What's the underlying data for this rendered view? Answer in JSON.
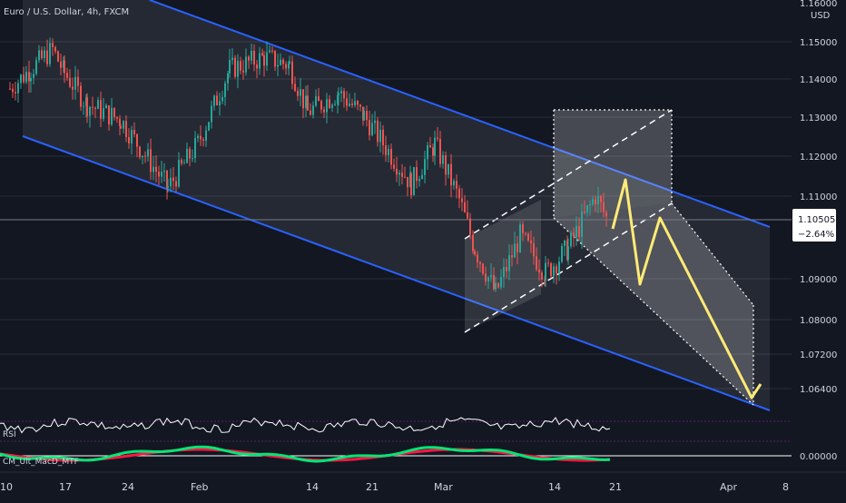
{
  "header": {
    "symbol": "Euro / U.S. Dollar, 4h, FXCM",
    "currency": "USD",
    "top_cut_label": "1.16000"
  },
  "price_axis": {
    "ticks": [
      "1.15000",
      "1.14000",
      "1.13000",
      "1.12000",
      "1.11000",
      "1.09000",
      "1.08000",
      "1.07200",
      "1.06400"
    ],
    "current_price": "1.10505",
    "change": "−2.64%"
  },
  "time_axis": {
    "ticks": [
      "10",
      "17",
      "24",
      "Feb",
      "14",
      "21",
      "Mar",
      "14",
      "21",
      "Apr",
      "8"
    ]
  },
  "indicators": {
    "rsi_label": "RSI",
    "macd_label": "CM_Ult_MacD_MTF",
    "macd_zero": "0.00000"
  },
  "colors": {
    "background": "#131722",
    "up": "#26a69a",
    "down": "#ef5350",
    "channel": "#2962ff",
    "projection": "#ffeb75",
    "price_label": "#ffffff"
  },
  "chart_data": {
    "type": "candlestick",
    "title": "Euro / U.S. Dollar, 4h, FXCM",
    "ylabel": "USD",
    "y_scale": "log",
    "ylim": [
      1.058,
      1.163
    ],
    "x_ticks": [
      "10",
      "17",
      "24",
      "Feb",
      "14",
      "21",
      "Mar",
      "14",
      "21",
      "Apr",
      "8"
    ],
    "y_ticks": [
      1.16,
      1.15,
      1.14,
      1.13,
      1.12,
      1.11,
      1.09,
      1.08,
      1.072,
      1.064
    ],
    "last_price": 1.10505,
    "last_change_pct": -2.64,
    "price_path": [
      {
        "x": "Jan 10",
        "price": 1.138
      },
      {
        "x": "Jan 12",
        "price": 1.143
      },
      {
        "x": "Jan 14",
        "price": 1.148
      },
      {
        "x": "Jan 17",
        "price": 1.142
      },
      {
        "x": "Jan 20",
        "price": 1.134
      },
      {
        "x": "Jan 24",
        "price": 1.13
      },
      {
        "x": "Jan 28",
        "price": 1.113
      },
      {
        "x": "Feb 1",
        "price": 1.124
      },
      {
        "x": "Feb 4",
        "price": 1.143
      },
      {
        "x": "Feb 7",
        "price": 1.146
      },
      {
        "x": "Feb 10",
        "price": 1.144
      },
      {
        "x": "Feb 14",
        "price": 1.132
      },
      {
        "x": "Feb 17",
        "price": 1.137
      },
      {
        "x": "Feb 21",
        "price": 1.131
      },
      {
        "x": "Feb 24",
        "price": 1.114
      },
      {
        "x": "Feb 27",
        "price": 1.124
      },
      {
        "x": "Mar 2",
        "price": 1.11
      },
      {
        "x": "Mar 4",
        "price": 1.098
      },
      {
        "x": "Mar 7",
        "price": 1.087
      },
      {
        "x": "Mar 10",
        "price": 1.101
      },
      {
        "x": "Mar 12",
        "price": 1.092
      },
      {
        "x": "Mar 15",
        "price": 1.098
      },
      {
        "x": "Mar 17",
        "price": 1.111
      },
      {
        "x": "Mar 18",
        "price": 1.105
      }
    ],
    "projection_path": [
      1.1045,
      1.1145,
      1.0895,
      1.1055,
      1.0625
    ],
    "annotations": [
      "descending channel",
      "rising channel",
      "projected bearish zigzag"
    ]
  }
}
